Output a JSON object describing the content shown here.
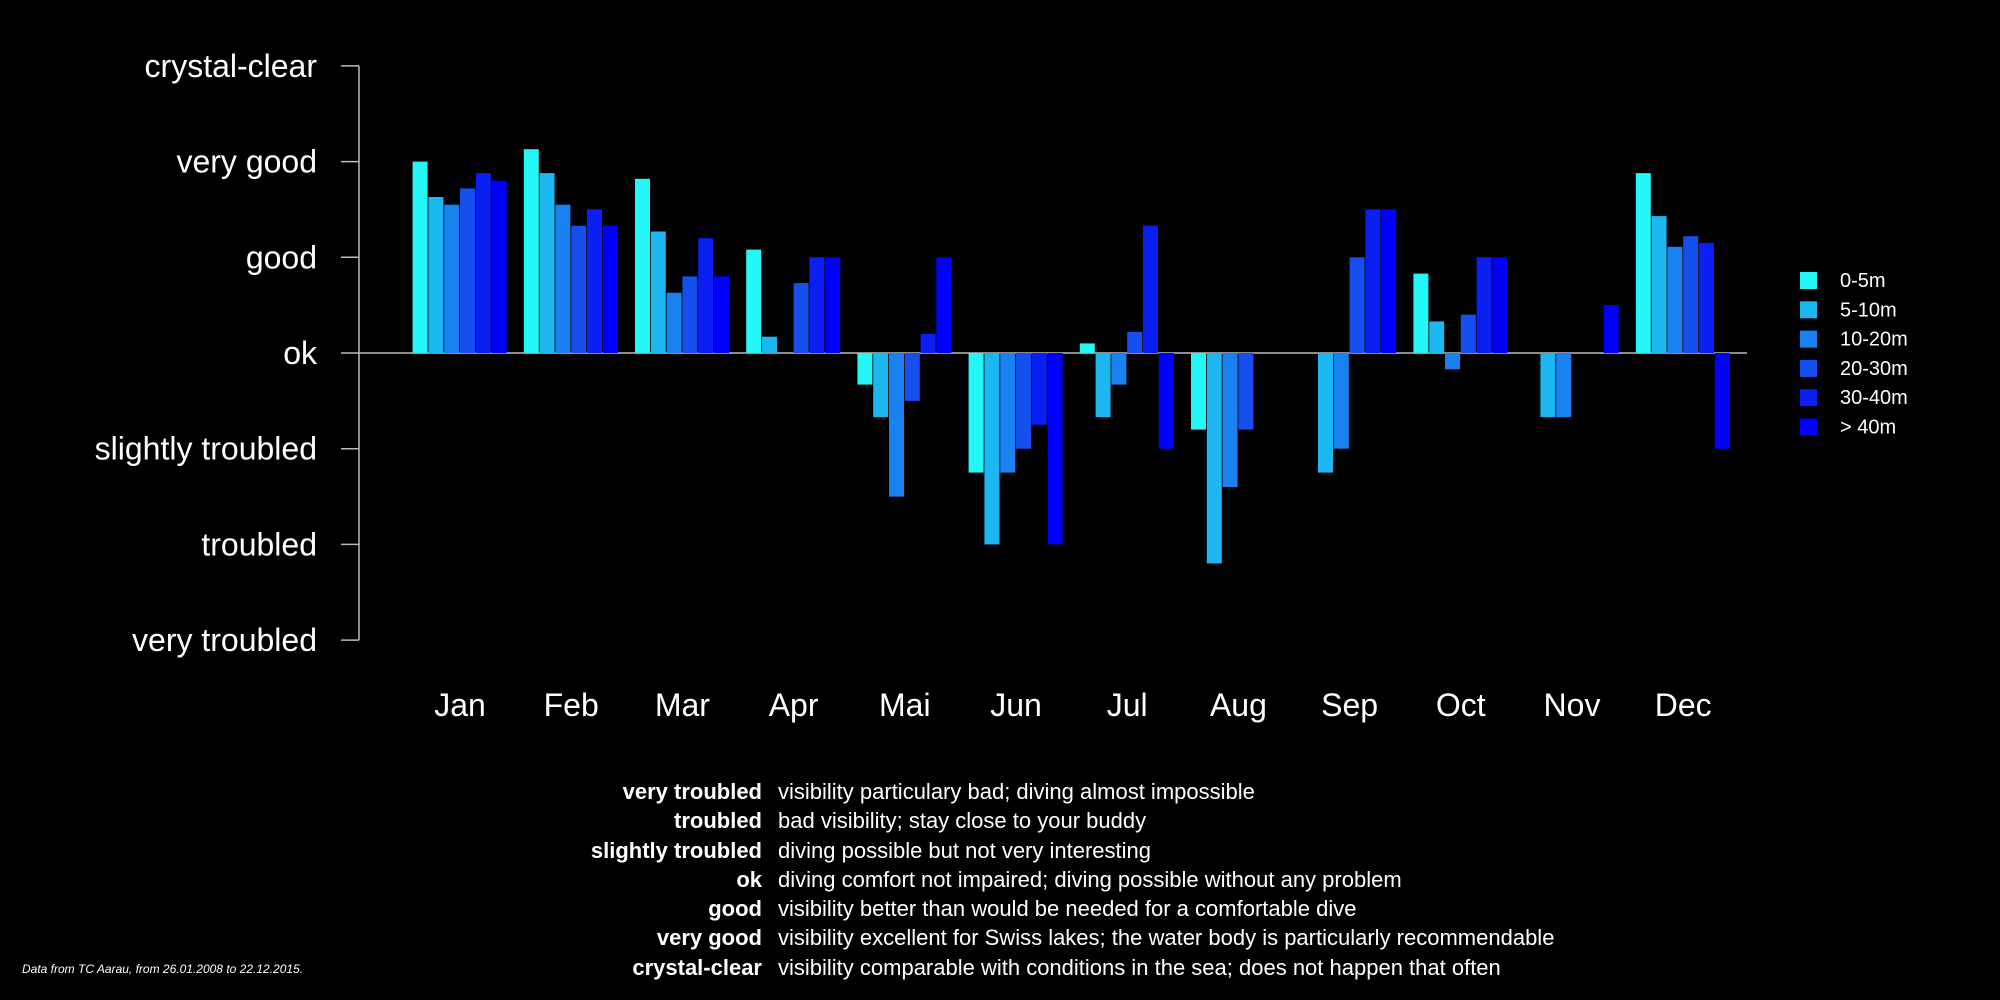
{
  "chart_data": {
    "type": "bar",
    "title": "",
    "xlabel": "",
    "ylabel": "",
    "ylim": [
      -3,
      3
    ],
    "y_tick_values": [
      -3,
      -2,
      -1,
      0,
      1,
      2,
      3
    ],
    "y_tick_labels": [
      "very troubled",
      "troubled",
      "slightly troubled",
      "ok",
      "good",
      "very good",
      "crystal-clear"
    ],
    "categories": [
      "Jan",
      "Feb",
      "Mar",
      "Apr",
      "Mai",
      "Jun",
      "Jul",
      "Aug",
      "Sep",
      "Oct",
      "Nov",
      "Dec"
    ],
    "legend_position": "right",
    "series": [
      {
        "name": "0-5m",
        "color": "#25f7f7",
        "values": [
          2.0,
          2.13,
          1.82,
          1.08,
          -0.33,
          -1.25,
          0.1,
          -0.8,
          null,
          0.83,
          null,
          1.88
        ]
      },
      {
        "name": "5-10m",
        "color": "#1cb6f1",
        "values": [
          1.63,
          1.88,
          1.27,
          0.17,
          -0.67,
          -2.0,
          -0.67,
          -2.2,
          -1.25,
          0.33,
          -0.67,
          1.43
        ]
      },
      {
        "name": "10-20m",
        "color": "#1a81f0",
        "values": [
          1.55,
          1.55,
          0.63,
          null,
          -1.5,
          -1.25,
          -0.33,
          -1.4,
          -1.0,
          -0.17,
          -0.67,
          1.11
        ]
      },
      {
        "name": "20-30m",
        "color": "#154fee",
        "values": [
          1.72,
          1.33,
          0.8,
          0.73,
          -0.5,
          -1.0,
          0.22,
          -0.8,
          1.0,
          0.4,
          null,
          1.22
        ]
      },
      {
        "name": "30-40m",
        "color": "#0a1ff2",
        "values": [
          1.88,
          1.5,
          1.2,
          1.0,
          0.2,
          -0.75,
          1.33,
          null,
          1.5,
          1.0,
          null,
          1.15
        ]
      },
      {
        "name": "> 40m",
        "color": "#0000ff",
        "values": [
          1.8,
          1.33,
          0.8,
          1.0,
          1.0,
          -2.0,
          -1.0,
          null,
          1.5,
          1.0,
          0.5,
          -1.0
        ]
      }
    ]
  },
  "descriptions": [
    {
      "term": "very troubled",
      "text": "visibility particulary bad; diving almost impossible"
    },
    {
      "term": "troubled",
      "text": "bad visibility; stay close to your buddy"
    },
    {
      "term": "slightly troubled",
      "text": "diving possible but not very interesting"
    },
    {
      "term": "ok",
      "text": "diving comfort not impaired; diving possible without any problem"
    },
    {
      "term": "good",
      "text": "visibility better than would be needed for a comfortable dive"
    },
    {
      "term": "very good",
      "text": "visibility excellent for Swiss lakes; the water body is particularly recommendable"
    },
    {
      "term": "crystal-clear",
      "text": "visibility comparable with conditions in the sea; does not happen that often"
    }
  ],
  "source_note": "Data from TC Aarau, from 26.01.2008 to 22.12.2015."
}
